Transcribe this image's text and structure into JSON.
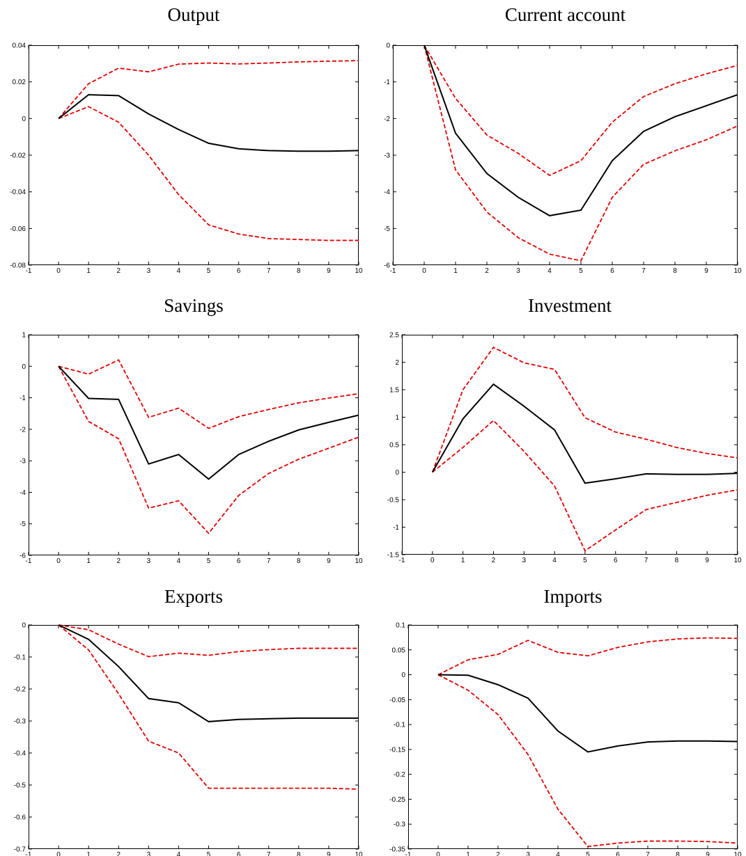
{
  "chart_data": [
    {
      "type": "line",
      "title": "Output",
      "xlim": [
        -1,
        10
      ],
      "ylim": [
        -0.08,
        0.04
      ],
      "xticks": [
        -1,
        0,
        1,
        2,
        3,
        4,
        5,
        6,
        7,
        8,
        9,
        10
      ],
      "xtick_labels": [
        "-1",
        "0",
        "1",
        "2",
        "3",
        "4",
        "5",
        "6",
        "7",
        "8",
        "9",
        "10"
      ],
      "yticks": [
        -0.08,
        -0.06,
        -0.04,
        -0.02,
        0,
        0.02,
        0.04
      ],
      "ytick_labels": [
        "-0.08",
        "-0.06",
        "-0.04",
        "-0.02",
        "0",
        "0.02",
        "0.04"
      ],
      "x": [
        0,
        1,
        2,
        3,
        4,
        5,
        6,
        7,
        8,
        9,
        10
      ],
      "series": [
        {
          "color": "#000000",
          "style": "solid",
          "values": [
            0,
            0.013,
            0.0125,
            0.0025,
            -0.006,
            -0.0135,
            -0.0165,
            -0.0175,
            -0.0178,
            -0.0178,
            -0.0175
          ]
        },
        {
          "color": "#e00000",
          "style": "dashed",
          "values": [
            0,
            0.019,
            0.0275,
            0.0255,
            0.0297,
            0.0303,
            0.0298,
            0.0303,
            0.0309,
            0.0313,
            0.0316
          ]
        },
        {
          "color": "#e00000",
          "style": "dashed",
          "values": [
            0,
            0.0065,
            -0.002,
            -0.02,
            -0.0415,
            -0.058,
            -0.063,
            -0.0655,
            -0.066,
            -0.0665,
            -0.0665
          ]
        }
      ]
    },
    {
      "type": "line",
      "title": "Current account",
      "xlim": [
        -1,
        10
      ],
      "ylim": [
        -6,
        0
      ],
      "xticks": [
        -1,
        0,
        1,
        2,
        3,
        4,
        5,
        6,
        7,
        8,
        9,
        10
      ],
      "xtick_labels": [
        "-1",
        "0",
        "1",
        "2",
        "3",
        "4",
        "5",
        "6",
        "7",
        "8",
        "9",
        "10"
      ],
      "yticks": [
        -6,
        -5,
        -4,
        -3,
        -2,
        -1,
        0
      ],
      "ytick_labels": [
        "-6",
        "-5",
        "-4",
        "-3",
        "-2",
        "-1",
        "0"
      ],
      "x": [
        0,
        1,
        2,
        3,
        4,
        5,
        6,
        7,
        8,
        9,
        10
      ],
      "series": [
        {
          "color": "#000000",
          "style": "solid",
          "values": [
            0,
            -2.4,
            -3.5,
            -4.15,
            -4.65,
            -4.5,
            -3.15,
            -2.35,
            -1.95,
            -1.65,
            -1.35
          ]
        },
        {
          "color": "#e00000",
          "style": "dashed",
          "values": [
            0,
            -1.45,
            -2.45,
            -2.95,
            -3.55,
            -3.15,
            -2.1,
            -1.4,
            -1.05,
            -0.78,
            -0.55
          ]
        },
        {
          "color": "#e00000",
          "style": "dashed",
          "values": [
            0,
            -3.4,
            -4.55,
            -5.25,
            -5.7,
            -5.88,
            -4.15,
            -3.25,
            -2.88,
            -2.58,
            -2.2
          ]
        }
      ]
    },
    {
      "type": "line",
      "title": "Savings",
      "xlim": [
        -1,
        10
      ],
      "ylim": [
        -6,
        1
      ],
      "xticks": [
        -1,
        0,
        1,
        2,
        3,
        4,
        5,
        6,
        7,
        8,
        9,
        10
      ],
      "xtick_labels": [
        "-1",
        "0",
        "1",
        "2",
        "3",
        "4",
        "5",
        "6",
        "7",
        "8",
        "9",
        "10"
      ],
      "yticks": [
        -6,
        -5,
        -4,
        -3,
        -2,
        -1,
        0,
        1
      ],
      "ytick_labels": [
        "-6",
        "-5",
        "-4",
        "-3",
        "-2",
        "-1",
        "0",
        "1"
      ],
      "x": [
        0,
        1,
        2,
        3,
        4,
        5,
        6,
        7,
        8,
        9,
        10
      ],
      "series": [
        {
          "color": "#000000",
          "style": "solid",
          "values": [
            0,
            -1.02,
            -1.05,
            -3.1,
            -2.8,
            -3.58,
            -2.8,
            -2.38,
            -2.02,
            -1.78,
            -1.55
          ]
        },
        {
          "color": "#e00000",
          "style": "dashed",
          "values": [
            0,
            -0.25,
            0.2,
            -1.62,
            -1.33,
            -1.97,
            -1.6,
            -1.37,
            -1.16,
            -1.01,
            -0.87
          ]
        },
        {
          "color": "#e00000",
          "style": "dashed",
          "values": [
            0,
            -1.75,
            -2.3,
            -4.5,
            -4.27,
            -5.3,
            -4.1,
            -3.4,
            -2.95,
            -2.6,
            -2.25
          ]
        }
      ]
    },
    {
      "type": "line",
      "title": "Investment",
      "xlim": [
        -1,
        10
      ],
      "ylim": [
        -1.5,
        2.5
      ],
      "xticks": [
        -1,
        0,
        1,
        2,
        3,
        4,
        5,
        6,
        7,
        8,
        9,
        10
      ],
      "xtick_labels": [
        "-1",
        "0",
        "1",
        "2",
        "3",
        "4",
        "5",
        "6",
        "7",
        "8",
        "9",
        "10"
      ],
      "yticks": [
        -1.5,
        -1,
        -0.5,
        0,
        0.5,
        1,
        1.5,
        2,
        2.5
      ],
      "ytick_labels": [
        "-1.5",
        "-1",
        "-0.5",
        "0",
        "0.5",
        "1",
        "1.5",
        "2",
        "2.5"
      ],
      "x": [
        0,
        1,
        2,
        3,
        4,
        5,
        6,
        7,
        8,
        9,
        10
      ],
      "series": [
        {
          "color": "#000000",
          "style": "solid",
          "values": [
            0,
            0.97,
            1.6,
            1.2,
            0.77,
            -0.2,
            -0.12,
            -0.03,
            -0.04,
            -0.04,
            -0.02
          ]
        },
        {
          "color": "#e00000",
          "style": "dashed",
          "values": [
            0,
            1.5,
            2.27,
            1.99,
            1.87,
            0.99,
            0.73,
            0.6,
            0.45,
            0.34,
            0.26
          ]
        },
        {
          "color": "#e00000",
          "style": "dashed",
          "values": [
            0,
            0.45,
            0.94,
            0.38,
            -0.25,
            -1.43,
            -1.05,
            -0.68,
            -0.55,
            -0.42,
            -0.32
          ]
        }
      ]
    },
    {
      "type": "line",
      "title": "Exports",
      "xlim": [
        -1,
        10
      ],
      "ylim": [
        -0.7,
        0
      ],
      "xticks": [
        -1,
        0,
        1,
        2,
        3,
        4,
        5,
        6,
        7,
        8,
        9,
        10
      ],
      "xtick_labels": [
        "-1",
        "0",
        "1",
        "2",
        "3",
        "4",
        "5",
        "6",
        "7",
        "8",
        "9",
        "10"
      ],
      "yticks": [
        -0.7,
        -0.6,
        -0.5,
        -0.4,
        -0.3,
        -0.2,
        -0.1,
        0
      ],
      "ytick_labels": [
        "-0.7",
        "-0.6",
        "-0.5",
        "-0.4",
        "-0.3",
        "-0.2",
        "-0.1",
        "0"
      ],
      "x": [
        0,
        1,
        2,
        3,
        4,
        5,
        6,
        7,
        8,
        9,
        10
      ],
      "series": [
        {
          "color": "#000000",
          "style": "solid",
          "values": [
            0,
            -0.045,
            -0.13,
            -0.23,
            -0.243,
            -0.302,
            -0.295,
            -0.293,
            -0.291,
            -0.291,
            -0.291
          ]
        },
        {
          "color": "#e00000",
          "style": "dashed",
          "values": [
            0,
            -0.015,
            -0.06,
            -0.099,
            -0.088,
            -0.095,
            -0.083,
            -0.077,
            -0.073,
            -0.073,
            -0.073
          ]
        },
        {
          "color": "#e00000",
          "style": "dashed",
          "values": [
            0,
            -0.078,
            -0.215,
            -0.363,
            -0.4,
            -0.51,
            -0.51,
            -0.51,
            -0.51,
            -0.51,
            -0.513
          ]
        }
      ]
    },
    {
      "type": "line",
      "title": "Imports",
      "xlim": [
        -1,
        10
      ],
      "ylim": [
        -0.35,
        0.1
      ],
      "xticks": [
        -1,
        0,
        1,
        2,
        3,
        4,
        5,
        6,
        7,
        8,
        9,
        10
      ],
      "xtick_labels": [
        "-1",
        "0",
        "1",
        "2",
        "3",
        "4",
        "5",
        "6",
        "7",
        "8",
        "9",
        "10"
      ],
      "yticks": [
        -0.35,
        -0.3,
        -0.25,
        -0.2,
        -0.15,
        -0.1,
        -0.05,
        0,
        0.05,
        0.1
      ],
      "ytick_labels": [
        "-0.35",
        "-0.3",
        "-0.25",
        "-0.2",
        "-0.15",
        "-0.1",
        "-0.05",
        "0",
        "0.05",
        "0.1"
      ],
      "x": [
        0,
        1,
        2,
        3,
        4,
        5,
        6,
        7,
        8,
        9,
        10
      ],
      "series": [
        {
          "color": "#000000",
          "style": "solid",
          "values": [
            0,
            -0.001,
            -0.02,
            -0.047,
            -0.113,
            -0.155,
            -0.143,
            -0.135,
            -0.133,
            -0.133,
            -0.134
          ]
        },
        {
          "color": "#e00000",
          "style": "dashed",
          "values": [
            0,
            0.03,
            0.041,
            0.069,
            0.045,
            0.038,
            0.055,
            0.066,
            0.072,
            0.074,
            0.073
          ]
        },
        {
          "color": "#e00000",
          "style": "dashed",
          "values": [
            0,
            -0.031,
            -0.08,
            -0.16,
            -0.27,
            -0.345,
            -0.338,
            -0.334,
            -0.334,
            -0.335,
            -0.338
          ]
        }
      ]
    }
  ]
}
